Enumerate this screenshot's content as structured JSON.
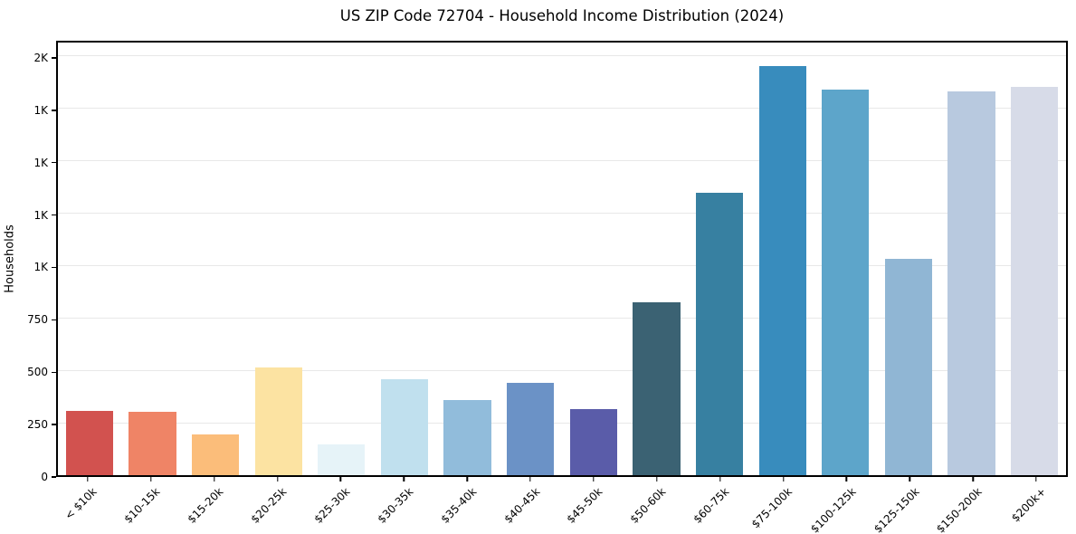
{
  "chart_data": {
    "type": "bar",
    "title": "US ZIP Code 72704 - Household Income Distribution (2024)",
    "xlabel": "",
    "ylabel": "Households",
    "ylim": [
      0,
      2082
    ],
    "grid": "horizontal",
    "legend": "none",
    "categories": [
      "< $10k",
      "$10-15k",
      "$15-20k",
      "$20-25k",
      "$25-30k",
      "$30-35k",
      "$35-40k",
      "$40-45k",
      "$45-50k",
      "$50-60k",
      "$60-75k",
      "$75-100k",
      "$100-125k",
      "$125-150k",
      "$150-200k",
      "$200k+"
    ],
    "values": [
      310,
      305,
      195,
      520,
      150,
      460,
      360,
      445,
      320,
      830,
      1360,
      1970,
      1855,
      1040,
      1845,
      1870
    ],
    "bar_colors": [
      "#d2524f",
      "#ef8466",
      "#fbbd7a",
      "#fce3a2",
      "#e6f3f8",
      "#c0e0ee",
      "#91bcdb",
      "#6b92c6",
      "#5a5ca9",
      "#3b6273",
      "#3780a1",
      "#388cbd",
      "#5da5ca",
      "#90b6d4",
      "#b8c9df",
      "#d7dbe8"
    ],
    "y_ticks": [
      {
        "value": 0,
        "label": "0"
      },
      {
        "value": 250,
        "label": "250"
      },
      {
        "value": 500,
        "label": "500"
      },
      {
        "value": 750,
        "label": "750"
      },
      {
        "value": 1000,
        "label": "1K"
      },
      {
        "value": 1250,
        "label": "1K"
      },
      {
        "value": 1500,
        "label": "1K"
      },
      {
        "value": 1750,
        "label": "1K"
      },
      {
        "value": 2000,
        "label": "2K"
      }
    ]
  },
  "colors": {
    "background": "#ffffff",
    "axis_frame": "#000000",
    "gridline": "#e8e8e8",
    "text": "#000000"
  }
}
